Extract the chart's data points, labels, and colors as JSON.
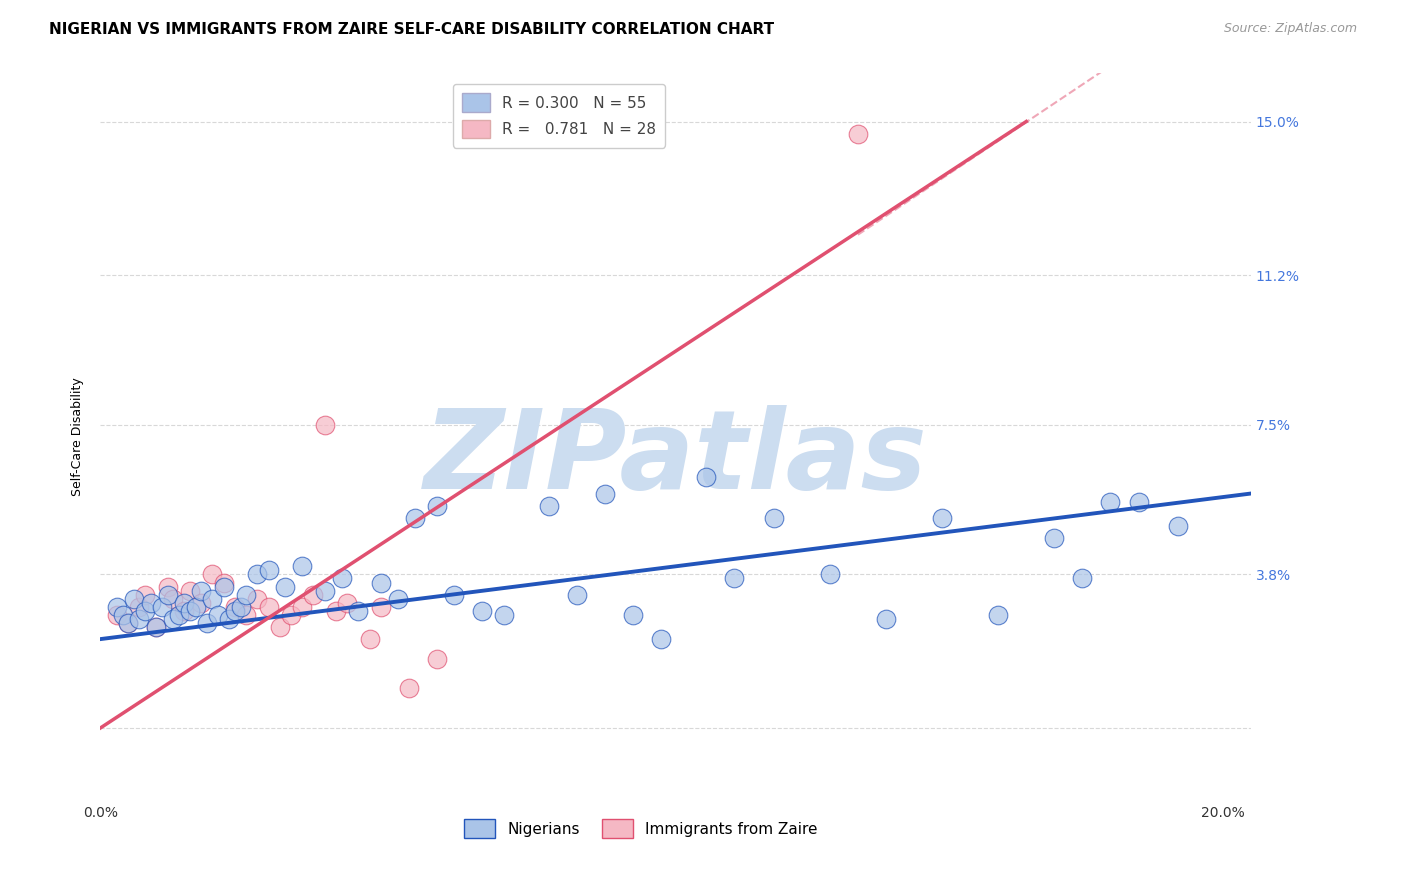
{
  "title": "NIGERIAN VS IMMIGRANTS FROM ZAIRE SELF-CARE DISABILITY CORRELATION CHART",
  "source": "Source: ZipAtlas.com",
  "ylabel": "Self-Care Disability",
  "xlim": [
    0.0,
    0.205
  ],
  "ylim": [
    -0.018,
    0.162
  ],
  "yticks": [
    0.0,
    0.038,
    0.075,
    0.112,
    0.15
  ],
  "ytick_labels": [
    "",
    "3.8%",
    "7.5%",
    "11.2%",
    "15.0%"
  ],
  "xticks": [
    0.0,
    0.05,
    0.1,
    0.15,
    0.2
  ],
  "xtick_labels": [
    "0.0%",
    "",
    "",
    "",
    "20.0%"
  ],
  "background_color": "#ffffff",
  "grid_color": "#d8d8d8",
  "series_nigerian": {
    "color": "#aac4e8",
    "line_color": "#2255bb",
    "x": [
      0.003,
      0.004,
      0.005,
      0.006,
      0.007,
      0.008,
      0.009,
      0.01,
      0.011,
      0.012,
      0.013,
      0.014,
      0.015,
      0.016,
      0.017,
      0.018,
      0.019,
      0.02,
      0.021,
      0.022,
      0.023,
      0.024,
      0.025,
      0.026,
      0.028,
      0.03,
      0.033,
      0.036,
      0.04,
      0.043,
      0.046,
      0.05,
      0.053,
      0.056,
      0.06,
      0.063,
      0.068,
      0.072,
      0.08,
      0.085,
      0.09,
      0.095,
      0.1,
      0.108,
      0.113,
      0.12,
      0.13,
      0.14,
      0.15,
      0.16,
      0.17,
      0.175,
      0.18,
      0.185,
      0.192
    ],
    "y": [
      0.03,
      0.028,
      0.026,
      0.032,
      0.027,
      0.029,
      0.031,
      0.025,
      0.03,
      0.033,
      0.027,
      0.028,
      0.031,
      0.029,
      0.03,
      0.034,
      0.026,
      0.032,
      0.028,
      0.035,
      0.027,
      0.029,
      0.03,
      0.033,
      0.038,
      0.039,
      0.035,
      0.04,
      0.034,
      0.037,
      0.029,
      0.036,
      0.032,
      0.052,
      0.055,
      0.033,
      0.029,
      0.028,
      0.055,
      0.033,
      0.058,
      0.028,
      0.022,
      0.062,
      0.037,
      0.052,
      0.038,
      0.027,
      0.052,
      0.028,
      0.047,
      0.037,
      0.056,
      0.056,
      0.05
    ],
    "trend_x": [
      0.0,
      0.205
    ],
    "trend_y": [
      0.022,
      0.058
    ]
  },
  "series_zaire": {
    "color": "#f5b8c4",
    "line_color": "#e05070",
    "x": [
      0.003,
      0.005,
      0.007,
      0.008,
      0.01,
      0.012,
      0.013,
      0.015,
      0.016,
      0.018,
      0.02,
      0.022,
      0.024,
      0.026,
      0.028,
      0.03,
      0.032,
      0.034,
      0.036,
      0.038,
      0.04,
      0.042,
      0.044,
      0.048,
      0.05,
      0.055,
      0.06,
      0.135
    ],
    "y": [
      0.028,
      0.026,
      0.03,
      0.033,
      0.025,
      0.035,
      0.032,
      0.029,
      0.034,
      0.031,
      0.038,
      0.036,
      0.03,
      0.028,
      0.032,
      0.03,
      0.025,
      0.028,
      0.03,
      0.033,
      0.075,
      0.029,
      0.031,
      0.022,
      0.03,
      0.01,
      0.017,
      0.147
    ],
    "trend_x": [
      0.0,
      0.165
    ],
    "trend_y": [
      0.0,
      0.15
    ]
  },
  "watermark": "ZIPatlas",
  "watermark_color": "#ccddf0",
  "title_fontsize": 11,
  "source_fontsize": 9,
  "axis_label_fontsize": 9,
  "tick_fontsize": 10,
  "legend_fontsize": 11
}
